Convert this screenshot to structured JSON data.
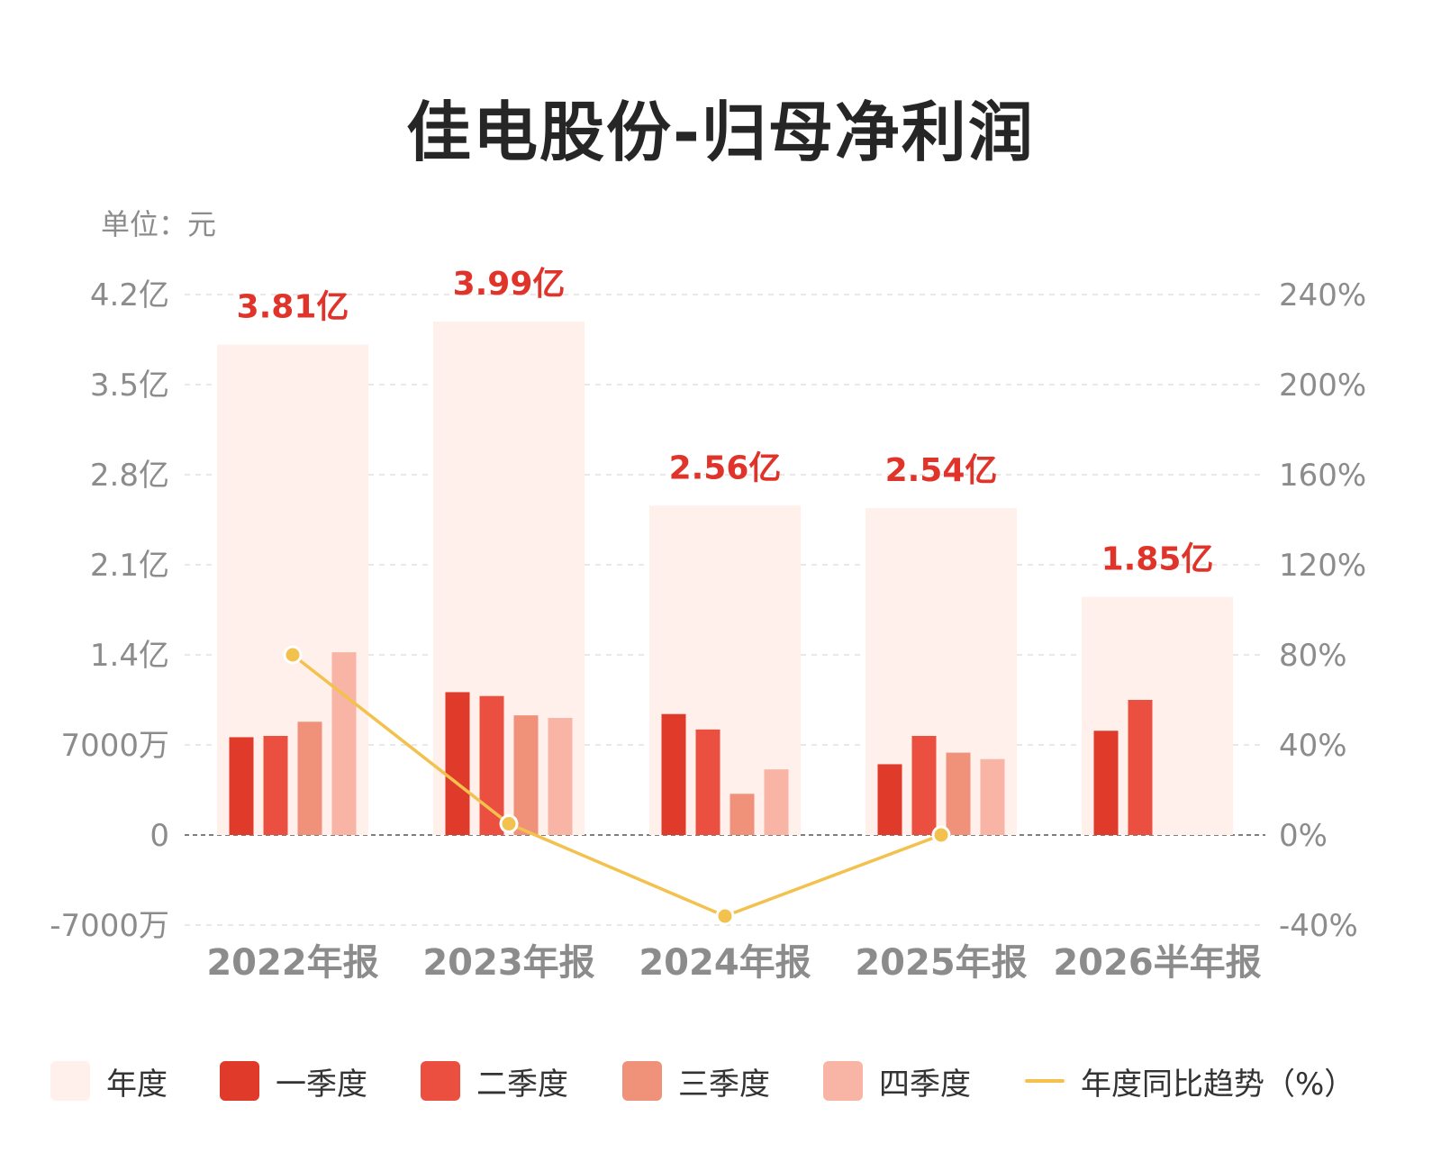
{
  "title": "佳电股份-归母净利润",
  "unit_label": "单位：元",
  "colors": {
    "annual": "#fff0ec",
    "q1": "#e03a2a",
    "q2": "#ea4f40",
    "q3": "#f0917a",
    "q4": "#f8b4a4",
    "yoy_line": "#f2c14e",
    "total_label": "#e0342b",
    "axis_text": "#8c8c8c"
  },
  "legend": [
    {
      "key": "annual",
      "label": "年度",
      "kind": "box"
    },
    {
      "key": "q1",
      "label": "一季度",
      "kind": "box"
    },
    {
      "key": "q2",
      "label": "二季度",
      "kind": "box"
    },
    {
      "key": "q3",
      "label": "三季度",
      "kind": "box"
    },
    {
      "key": "q4",
      "label": "四季度",
      "kind": "box"
    },
    {
      "key": "yoy_line",
      "label": "年度同比趋势（%）",
      "kind": "line"
    }
  ],
  "chart_data": {
    "type": "bar",
    "categories": [
      "2022年报",
      "2023年报",
      "2024年报",
      "2025年报",
      "2026半年报"
    ],
    "left_axis": {
      "ylim": [
        -70000000,
        420000000
      ],
      "ticks": [
        -70000000,
        0,
        70000000,
        140000000,
        210000000,
        280000000,
        350000000,
        420000000
      ],
      "tick_labels": [
        "-7000万",
        "0",
        "7000万",
        "1.4亿",
        "2.1亿",
        "2.8亿",
        "3.5亿",
        "4.2亿"
      ]
    },
    "right_axis": {
      "ylim": [
        -40,
        240
      ],
      "ticks": [
        -40,
        0,
        40,
        80,
        120,
        160,
        200,
        240
      ],
      "tick_labels": [
        "-40%",
        "0%",
        "40%",
        "80%",
        "120%",
        "160%",
        "200%",
        "240%"
      ]
    },
    "annual_totals": [
      381000000,
      399000000,
      256000000,
      254000000,
      185000000
    ],
    "annual_total_labels": [
      "3.81亿",
      "3.99亿",
      "2.56亿",
      "2.54亿",
      "1.85亿"
    ],
    "series": [
      {
        "key": "q1",
        "name": "一季度",
        "values": [
          76000000,
          111000000,
          94000000,
          55000000,
          81000000
        ]
      },
      {
        "key": "q2",
        "name": "二季度",
        "values": [
          77000000,
          108000000,
          82000000,
          77000000,
          105000000
        ]
      },
      {
        "key": "q3",
        "name": "三季度",
        "values": [
          88000000,
          93000000,
          32000000,
          64000000,
          null
        ]
      },
      {
        "key": "q4",
        "name": "四季度",
        "values": [
          142000000,
          91000000,
          51000000,
          59000000,
          null
        ]
      }
    ],
    "yoy_trend": {
      "name": "年度同比趋势（%）",
      "values": [
        80,
        5,
        -36,
        0,
        null
      ]
    },
    "grid": true
  }
}
